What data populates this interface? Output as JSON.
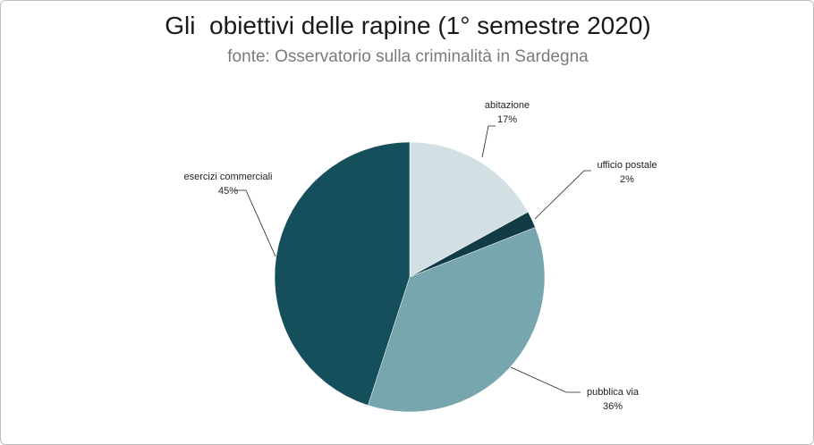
{
  "chart_data": {
    "type": "pie",
    "title": "Gli  obiettivi delle rapine (1° semestre 2020)",
    "subtitle": "fonte: Osservatorio sulla criminalità in Sardegna",
    "categories": [
      "abitazione",
      "ufficio postale",
      "pubblica via",
      "esercizi commerciali"
    ],
    "values": [
      17,
      2,
      36,
      45
    ],
    "labels": [
      "17%",
      "2%",
      "36%",
      "45%"
    ],
    "colors": [
      "#d3e0e3",
      "#123c45",
      "#78a6ae",
      "#164f5c"
    ],
    "legend": "none"
  }
}
